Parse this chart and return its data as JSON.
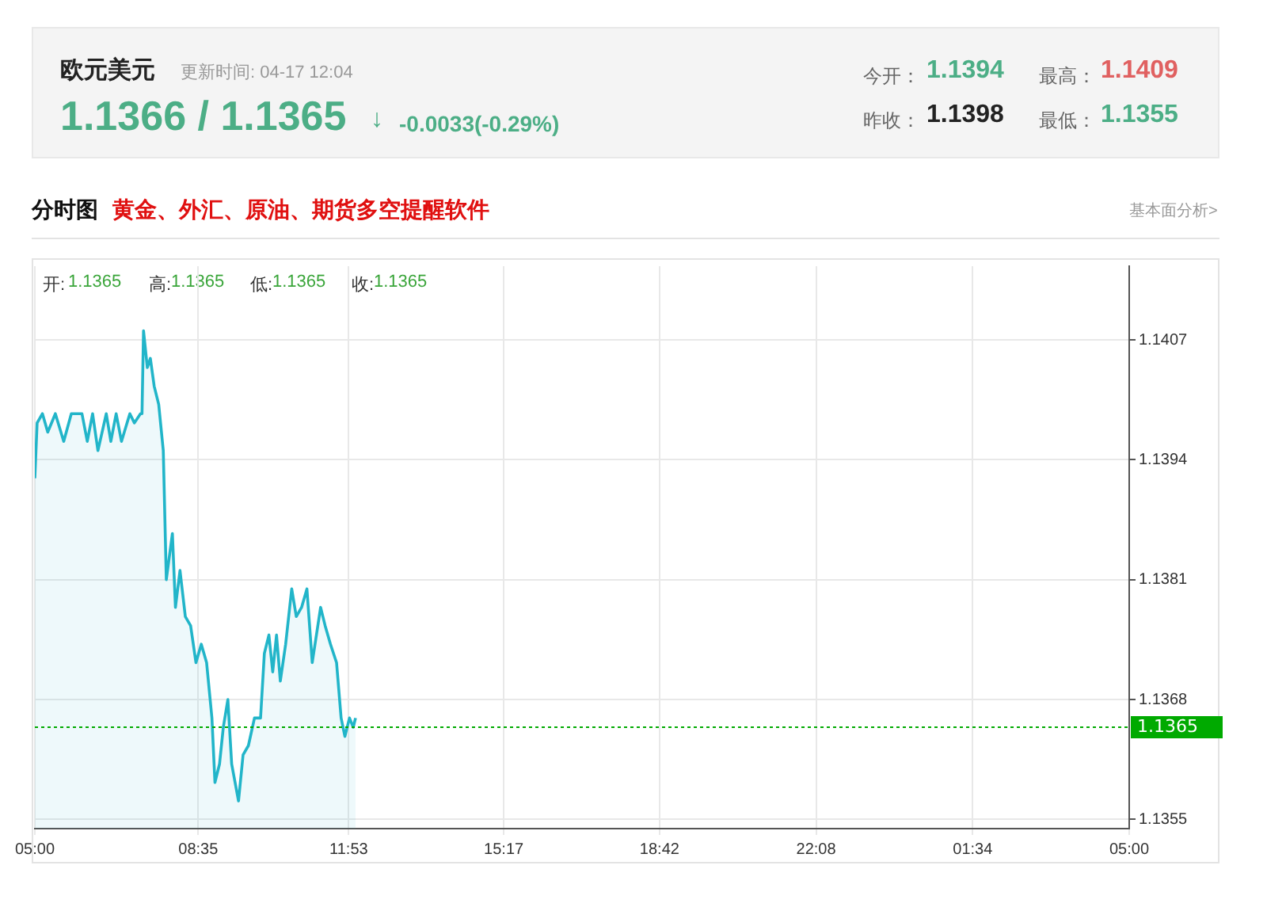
{
  "chart_data": {
    "type": "area",
    "title": "欧元美元",
    "subtitle": "更新时间: 04-17 12:04",
    "annotations": [
      "1.1366 / 1.1365",
      "↓",
      "-0.0033(-0.29%)",
      "今开：",
      "1.1394",
      "最高：",
      "1.1409",
      "昨收：",
      "1.1398",
      "最低：",
      "1.1355",
      "分时图",
      "黄金、外汇、原油、期货多空提醒软件",
      "基本面分析>",
      "开:",
      "1.1365",
      "高:",
      "1.1365",
      "低:",
      "1.1365",
      "收:",
      "1.1365"
    ],
    "series": [
      {
        "color": "#22b5c9",
        "x": [
          "--04-17T05:00",
          "--04-17T05:03",
          "--04-17T05:10",
          "--04-17T05:17",
          "--04-17T05:27",
          "--04-17T05:38",
          "--04-17T05:48",
          "--04-17T06:02",
          "--04-17T06:09",
          "--04-17T06:16",
          "--04-17T06:23",
          "--04-17T06:34",
          "--04-17T06:40",
          "--04-17T06:47",
          "--04-17T06:54",
          "--04-17T07:05",
          "--04-17T07:11",
          "--04-17T07:19",
          "--04-17T07:21",
          "--04-17T07:23",
          "--04-17T07:28",
          "--04-17T07:32",
          "--04-17T07:37",
          "--04-17T07:43",
          "--04-17T07:49",
          "--04-17T07:53",
          "--04-17T08:01",
          "--04-17T08:05",
          "--04-17T08:11",
          "--04-17T08:18",
          "--04-17T08:25",
          "--04-17T08:32",
          "--04-17T08:39",
          "--04-17T08:46",
          "--04-17T08:53",
          "--04-17T08:57",
          "--04-17T09:03",
          "--04-17T09:08",
          "--04-17T09:14",
          "--04-17T09:19",
          "--04-17T09:28",
          "--04-17T09:34",
          "--04-17T09:41",
          "--04-17T09:49",
          "--04-17T09:57",
          "--04-17T10:02",
          "--04-17T10:08",
          "--04-17T10:13",
          "--04-17T10:18",
          "--04-17T10:23",
          "--04-17T10:30",
          "--04-17T10:38",
          "--04-17T10:44",
          "--04-17T10:51",
          "--04-17T10:58",
          "--04-17T11:05",
          "--04-17T11:16",
          "--04-17T11:22",
          "--04-17T11:29",
          "--04-17T11:37",
          "--04-17T11:43",
          "--04-17T11:48",
          "--04-17T11:54",
          "--04-17T11:59",
          "--04-17T12:02"
        ],
        "values": [
          1.1392,
          1.1398,
          1.1399,
          1.1397,
          1.1399,
          1.1396,
          1.1399,
          1.1399,
          1.1396,
          1.1399,
          1.1395,
          1.1399,
          1.1396,
          1.1399,
          1.1396,
          1.1399,
          1.1398,
          1.1399,
          1.1399,
          1.1408,
          1.1404,
          1.1405,
          1.1402,
          1.14,
          1.1395,
          1.1381,
          1.1386,
          1.1378,
          1.1382,
          1.1377,
          1.1376,
          1.1372,
          1.1374,
          1.1372,
          1.1366,
          1.1359,
          1.1361,
          1.1365,
          1.1368,
          1.1361,
          1.1357,
          1.1362,
          1.1363,
          1.1366,
          1.1366,
          1.1373,
          1.1375,
          1.1371,
          1.1375,
          1.137,
          1.1374,
          1.138,
          1.1377,
          1.1378,
          1.138,
          1.1372,
          1.1378,
          1.1376,
          1.1374,
          1.1372,
          1.1366,
          1.1364,
          1.1366,
          1.1365,
          1.1366
        ]
      }
    ],
    "xlim": [
      "--04-17T05:00",
      "--04-18T05:00"
    ],
    "xticks": [
      {
        "value": "--04-17T05:00",
        "label": "05:00"
      },
      {
        "value": "--04-17T08:35",
        "label": "08:35"
      },
      {
        "value": "--04-17T11:53",
        "label": "11:53"
      },
      {
        "value": "--04-17T15:17",
        "label": "15:17"
      },
      {
        "value": "--04-17T18:42",
        "label": "18:42"
      },
      {
        "value": "--04-17T22:08",
        "label": "22:08"
      },
      {
        "value": "--04-18T01:34",
        "label": "01:34"
      },
      {
        "value": "--04-18T05:00",
        "label": "05:00"
      }
    ],
    "ylim": [
      1.1354,
      1.1415
    ],
    "yticks": [
      1.1355,
      1.1368,
      1.1381,
      1.1394,
      1.1407
    ],
    "ref_lines": [
      {
        "axis": "y",
        "value": 1.1365,
        "label": "1.1365",
        "color": "#00aa00",
        "line_style": "dotted"
      }
    ],
    "grid": true,
    "legend": false,
    "marker": "none",
    "line_style": "solid"
  }
}
